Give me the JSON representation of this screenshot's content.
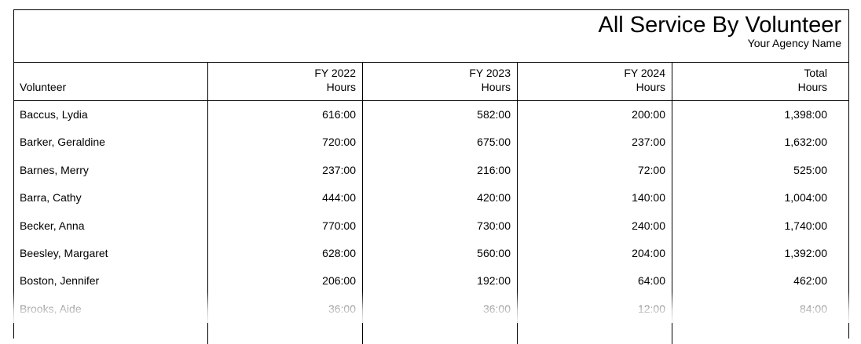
{
  "report": {
    "title": "All Service By Volunteer",
    "agency": "Your Agency Name"
  },
  "columns": {
    "volunteer": "Volunteer",
    "fy2022_line1": "FY 2022",
    "fy2022_line2": "Hours",
    "fy2023_line1": "FY 2023",
    "fy2023_line2": "Hours",
    "fy2024_line1": "FY 2024",
    "fy2024_line2": "Hours",
    "total_line1": "Total",
    "total_line2": "Hours"
  },
  "rows": [
    {
      "name": "Baccus, Lydia",
      "fy2022": "616:00",
      "fy2023": "582:00",
      "fy2024": "200:00",
      "total": "1,398:00"
    },
    {
      "name": "Barker, Geraldine",
      "fy2022": "720:00",
      "fy2023": "675:00",
      "fy2024": "237:00",
      "total": "1,632:00"
    },
    {
      "name": "Barnes, Merry",
      "fy2022": "237:00",
      "fy2023": "216:00",
      "fy2024": "72:00",
      "total": "525:00"
    },
    {
      "name": "Barra, Cathy",
      "fy2022": "444:00",
      "fy2023": "420:00",
      "fy2024": "140:00",
      "total": "1,004:00"
    },
    {
      "name": "Becker, Anna",
      "fy2022": "770:00",
      "fy2023": "730:00",
      "fy2024": "240:00",
      "total": "1,740:00"
    },
    {
      "name": "Beesley, Margaret",
      "fy2022": "628:00",
      "fy2023": "560:00",
      "fy2024": "204:00",
      "total": "1,392:00"
    },
    {
      "name": "Boston, Jennifer",
      "fy2022": "206:00",
      "fy2023": "192:00",
      "fy2024": "64:00",
      "total": "462:00"
    },
    {
      "name": "Brooks, Aide",
      "fy2022": "36:00",
      "fy2023": "36:00",
      "fy2024": "12:00",
      "total": "84:00"
    }
  ]
}
